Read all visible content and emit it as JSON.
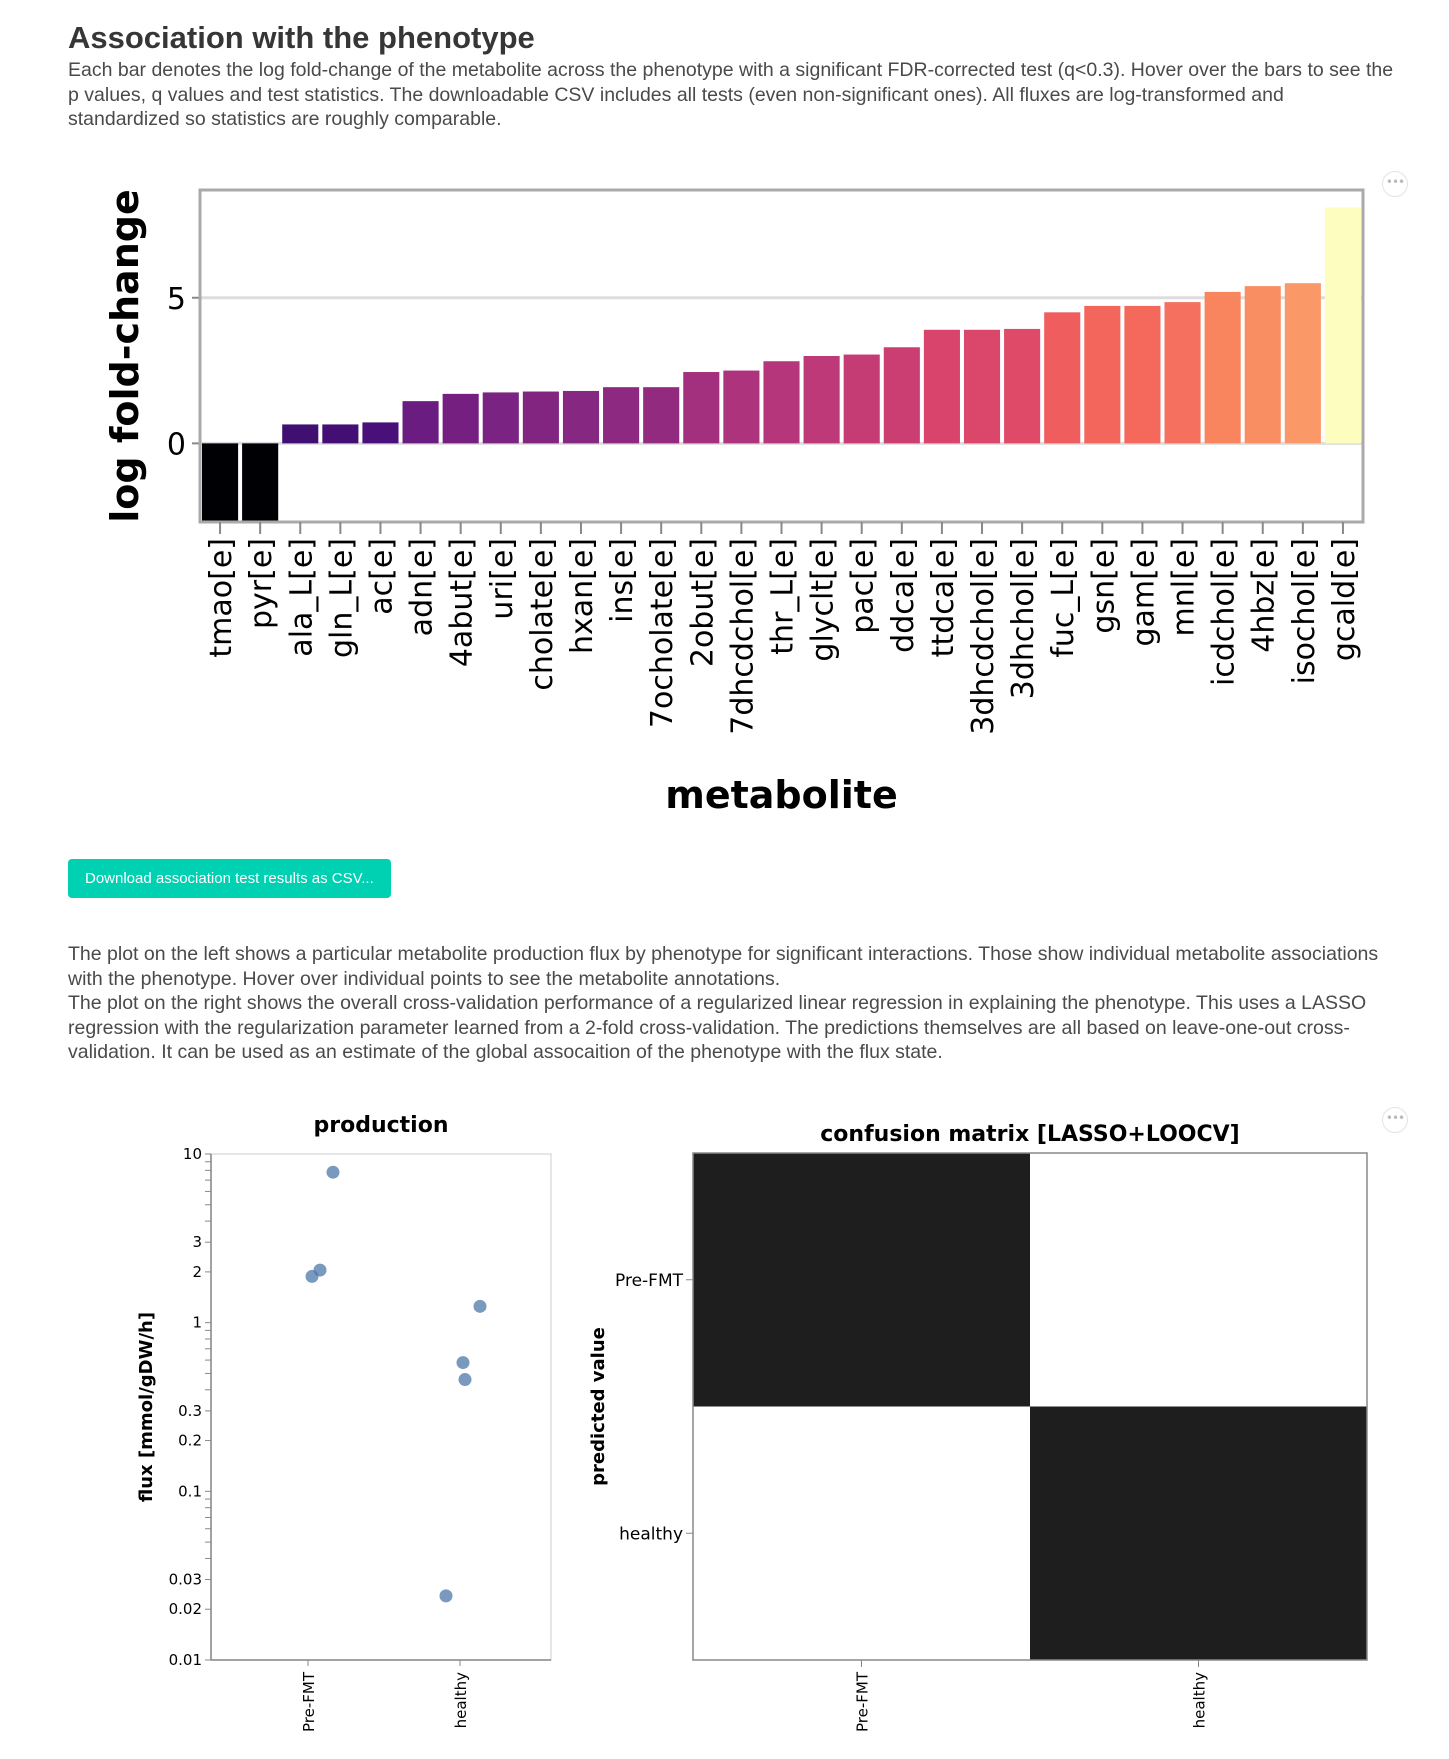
{
  "section": {
    "title": "Association with the phenotype",
    "description": "Each bar denotes the log fold-change of the metabolite across the phenotype with a significant FDR-corrected test (q<0.3). Hover over the bars to see the p values, q values and test statistics. The downloadable CSV includes all tests (even non-significant ones). All fluxes are log-transformed and standardized so statistics are roughly comparable.",
    "download_button": "Download association test results as CSV...",
    "description2_line1": "The plot on the left shows a particular metabolite production flux by phenotype for significant interactions. Those show individual metabolite associations with the phenotype. Hover over individual points to see the metabolite annotations.",
    "description2_line2": "The plot on the right shows the overall cross-validation performance of a regularized linear regression in explaining the phenotype. This uses a LASSO regression with the regularization parameter learned from a 2-fold cross-validation. The predictions themselves are all based on leave-one-out cross-validation. It can be used as an estimate of the global assocaition of the phenotype with the flux state."
  },
  "actions_menu_icon": "ellipsis-icon",
  "chart_data": [
    {
      "type": "bar",
      "title": "",
      "xlabel": "metabolite",
      "ylabel": "log fold-change",
      "ylim": [
        -2.7,
        8.7
      ],
      "yticks": [
        0,
        5
      ],
      "grid": true,
      "colormap": "magma",
      "categories": [
        "tmao[e]",
        "pyr[e]",
        "ala_L[e]",
        "gln_L[e]",
        "ac[e]",
        "adn[e]",
        "4abut[e]",
        "uri[e]",
        "cholate[e]",
        "hxan[e]",
        "ins[e]",
        "7ocholate[e]",
        "2obut[e]",
        "7dhcdchol[e]",
        "thr_L[e]",
        "glyclt[e]",
        "pac[e]",
        "ddca[e]",
        "ttdca[e]",
        "3dhcdchol[e]",
        "3dhchol[e]",
        "fuc_L[e]",
        "gsn[e]",
        "gam[e]",
        "mnl[e]",
        "icdchol[e]",
        "4hbz[e]",
        "isochol[e]",
        "gcald[e]"
      ],
      "values": [
        -2.7,
        -2.7,
        0.65,
        0.65,
        0.72,
        1.45,
        1.7,
        1.75,
        1.78,
        1.8,
        1.93,
        1.93,
        2.45,
        2.5,
        2.82,
        3.0,
        3.05,
        3.3,
        3.9,
        3.9,
        3.93,
        4.5,
        4.72,
        4.72,
        4.85,
        5.2,
        5.4,
        5.5,
        8.1
      ],
      "colors": [
        "#000004",
        "#000004",
        "#3f0f72",
        "#430f75",
        "#4a1079",
        "#6a1c81",
        "#751f81",
        "#7b2382",
        "#812581",
        "#862781",
        "#8d2981",
        "#922b80",
        "#a3307e",
        "#ac337c",
        "#b5367a",
        "#bd3977",
        "#c53c74",
        "#cb3e71",
        "#d8446b",
        "#db476a",
        "#df4a68",
        "#ef5d5e",
        "#f2665c",
        "#f4695c",
        "#f5705e",
        "#f9855f",
        "#fa8e63",
        "#fb9867",
        "#fcfdbf"
      ]
    },
    {
      "type": "scatter",
      "title": "production",
      "xlabel": "",
      "ylabel": "flux [mmol/gDW/h]",
      "yscale": "log",
      "ylim": [
        0.01,
        10
      ],
      "yticks": [
        0.01,
        0.02,
        0.03,
        0.1,
        0.2,
        0.3,
        1,
        2,
        3,
        10
      ],
      "categories": [
        "Pre-FMT",
        "healthy"
      ],
      "series": [
        {
          "values": [
            {
              "x": "Pre-FMT",
              "y": 7.8
            },
            {
              "x": "Pre-FMT",
              "y": 2.05
            },
            {
              "x": "Pre-FMT",
              "y": 1.88
            },
            {
              "x": "healthy",
              "y": 1.25
            },
            {
              "x": "healthy",
              "y": 0.58
            },
            {
              "x": "healthy",
              "y": 0.46
            },
            {
              "x": "healthy",
              "y": 0.024
            }
          ]
        }
      ],
      "color": "#4c78a8"
    },
    {
      "type": "heatmap",
      "title": "confusion matrix [LASSO+LOOCV]",
      "xlabel": "",
      "ylabel": "predicted value",
      "x": [
        "Pre-FMT",
        "healthy"
      ],
      "y": [
        "Pre-FMT",
        "healthy"
      ],
      "values": [
        [
          1,
          0
        ],
        [
          0,
          1
        ]
      ],
      "colors": {
        "high": "#1e1e1e",
        "low": "#ffffff"
      }
    }
  ]
}
